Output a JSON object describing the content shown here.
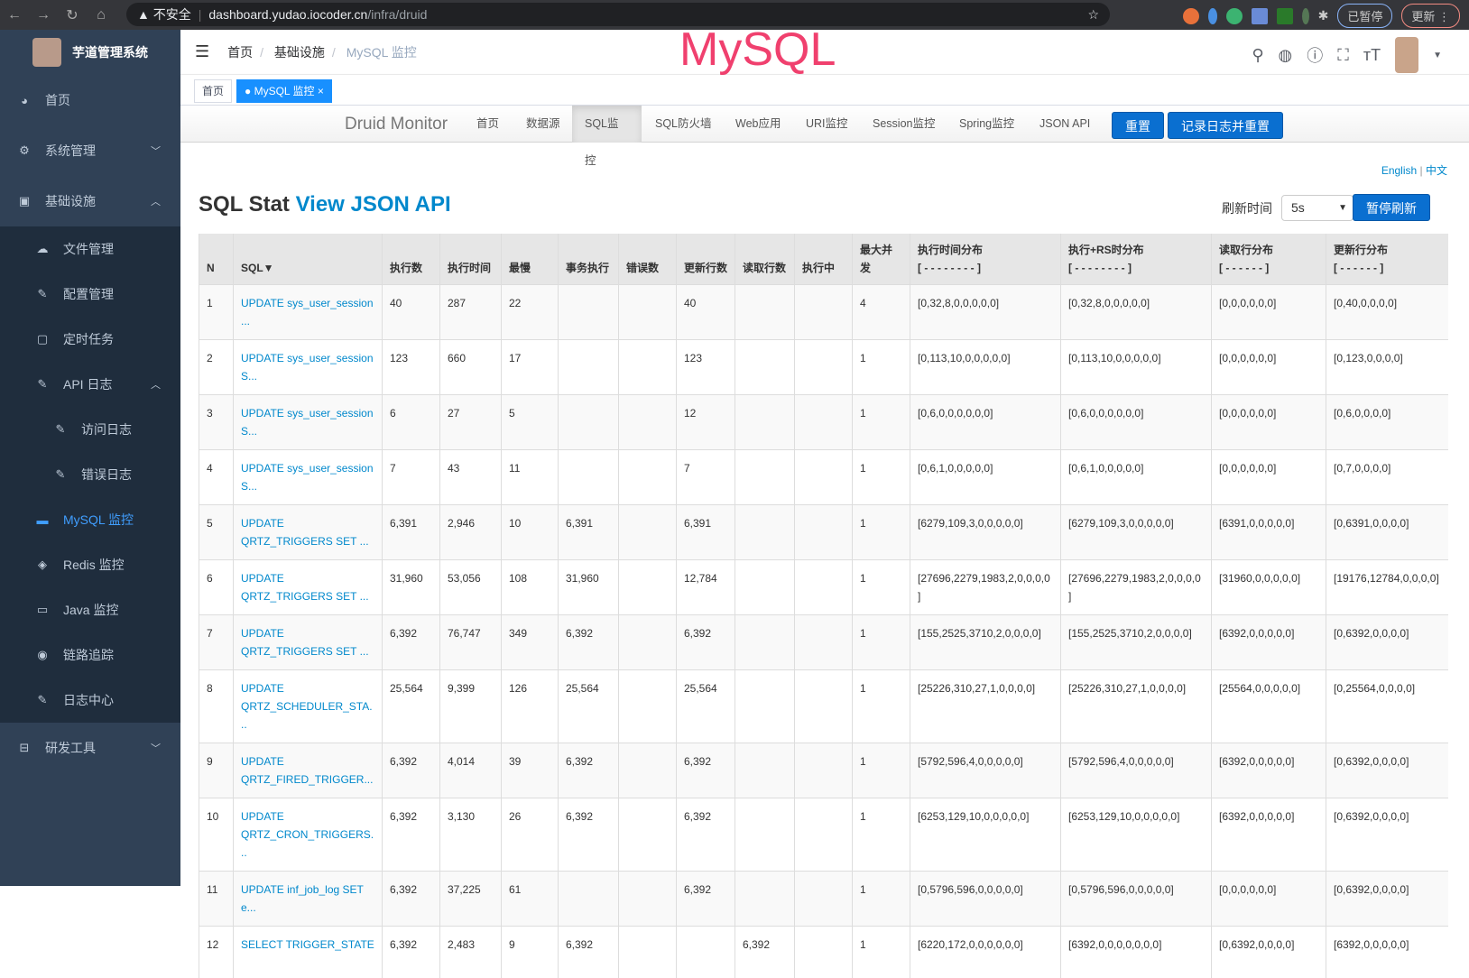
{
  "browser": {
    "security": "不安全",
    "url_host": "dashboard.yudao.iocoder.cn",
    "url_path": "/infra/druid",
    "paused": "已暂停",
    "update": "更新"
  },
  "sidebar": {
    "title": "芋道管理系统",
    "items": [
      {
        "label": "首页",
        "icon": "dashboard-icon"
      },
      {
        "label": "系统管理",
        "icon": "gear-icon"
      },
      {
        "label": "基础设施",
        "icon": "monitor-icon"
      },
      {
        "label": "文件管理",
        "icon": "upload-icon"
      },
      {
        "label": "配置管理",
        "icon": "edit-icon"
      },
      {
        "label": "定时任务",
        "icon": "job-icon"
      },
      {
        "label": "API 日志",
        "icon": "log-icon"
      },
      {
        "label": "访问日志",
        "icon": "log-icon"
      },
      {
        "label": "错误日志",
        "icon": "log-icon"
      },
      {
        "label": "MySQL 监控",
        "icon": "database-icon"
      },
      {
        "label": "Redis 监控",
        "icon": "redis-icon"
      },
      {
        "label": "Java 监控",
        "icon": "server-icon"
      },
      {
        "label": "链路追踪",
        "icon": "eye-icon"
      },
      {
        "label": "日志中心",
        "icon": "log-icon"
      },
      {
        "label": "研发工具",
        "icon": "toolbox-icon"
      }
    ]
  },
  "header": {
    "breadcrumb": [
      "首页",
      "基础设施",
      "MySQL 监控"
    ],
    "watermark": "MySQL"
  },
  "tags": [
    {
      "label": "首页"
    },
    {
      "label": "MySQL 监控"
    }
  ],
  "druid": {
    "brand": "Druid Monitor",
    "nav": [
      "首页",
      "数据源",
      "SQL监控",
      "SQL防火墙",
      "Web应用",
      "URI监控",
      "Session监控",
      "Spring监控",
      "JSON API"
    ],
    "reset": "重置",
    "log_reset": "记录日志并重置",
    "lang_en": "English",
    "lang_sep": "|",
    "lang_zh": "中文",
    "title": "SQL Stat",
    "title_link": "View JSON API",
    "refresh_label": "刷新时间",
    "refresh_value": "5s",
    "pause": "暂停刷新"
  },
  "table": {
    "headers": [
      "N",
      "SQL▼",
      "执行数",
      "执行时间",
      "最慢",
      "事务执行",
      "错误数",
      "更新行数",
      "读取行数",
      "执行中",
      "最大并发",
      "执行时间分布\n[ - - - - - - - - ]",
      "执行+RS时分布\n[ - - - - - - - - ]",
      "读取行分布\n[ - - - - - - ]",
      "更新行分布\n[ - - - - - - ]"
    ],
    "rows": [
      [
        "1",
        "UPDATE sys_user_session ...",
        "40",
        "287",
        "22",
        "",
        "",
        "40",
        "",
        "",
        "4",
        "[0,32,8,0,0,0,0,0]",
        "[0,32,8,0,0,0,0,0]",
        "[0,0,0,0,0,0]",
        "[0,40,0,0,0,0]"
      ],
      [
        "2",
        "UPDATE sys_user_session S...",
        "123",
        "660",
        "17",
        "",
        "",
        "123",
        "",
        "",
        "1",
        "[0,113,10,0,0,0,0,0]",
        "[0,113,10,0,0,0,0,0]",
        "[0,0,0,0,0,0]",
        "[0,123,0,0,0,0]"
      ],
      [
        "3",
        "UPDATE sys_user_session S...",
        "6",
        "27",
        "5",
        "",
        "",
        "12",
        "",
        "",
        "1",
        "[0,6,0,0,0,0,0,0]",
        "[0,6,0,0,0,0,0,0]",
        "[0,0,0,0,0,0]",
        "[0,6,0,0,0,0]"
      ],
      [
        "4",
        "UPDATE sys_user_session S...",
        "7",
        "43",
        "11",
        "",
        "",
        "7",
        "",
        "",
        "1",
        "[0,6,1,0,0,0,0,0]",
        "[0,6,1,0,0,0,0,0]",
        "[0,0,0,0,0,0]",
        "[0,7,0,0,0,0]"
      ],
      [
        "5",
        "UPDATE QRTZ_TRIGGERS SET ...",
        "6,391",
        "2,946",
        "10",
        "6,391",
        "",
        "6,391",
        "",
        "",
        "1",
        "[6279,109,3,0,0,0,0,0]",
        "[6279,109,3,0,0,0,0,0]",
        "[6391,0,0,0,0,0]",
        "[0,6391,0,0,0,0]"
      ],
      [
        "6",
        "UPDATE QRTZ_TRIGGERS SET ...",
        "31,960",
        "53,056",
        "108",
        "31,960",
        "",
        "12,784",
        "",
        "",
        "1",
        "[27696,2279,1983,2,0,0,0,0]",
        "[27696,2279,1983,2,0,0,0,0]",
        "[31960,0,0,0,0,0]",
        "[19176,12784,0,0,0,0]"
      ],
      [
        "7",
        "UPDATE QRTZ_TRIGGERS SET ...",
        "6,392",
        "76,747",
        "349",
        "6,392",
        "",
        "6,392",
        "",
        "",
        "1",
        "[155,2525,3710,2,0,0,0,0]",
        "[155,2525,3710,2,0,0,0,0]",
        "[6392,0,0,0,0,0]",
        "[0,6392,0,0,0,0]"
      ],
      [
        "8",
        "UPDATE QRTZ_SCHEDULER_STA...",
        "25,564",
        "9,399",
        "126",
        "25,564",
        "",
        "25,564",
        "",
        "",
        "1",
        "[25226,310,27,1,0,0,0,0]",
        "[25226,310,27,1,0,0,0,0]",
        "[25564,0,0,0,0,0]",
        "[0,25564,0,0,0,0]"
      ],
      [
        "9",
        "UPDATE QRTZ_FIRED_TRIGGER...",
        "6,392",
        "4,014",
        "39",
        "6,392",
        "",
        "6,392",
        "",
        "",
        "1",
        "[5792,596,4,0,0,0,0,0]",
        "[5792,596,4,0,0,0,0,0]",
        "[6392,0,0,0,0,0]",
        "[0,6392,0,0,0,0]"
      ],
      [
        "10",
        "UPDATE QRTZ_CRON_TRIGGERS...",
        "6,392",
        "3,130",
        "26",
        "6,392",
        "",
        "6,392",
        "",
        "",
        "1",
        "[6253,129,10,0,0,0,0,0]",
        "[6253,129,10,0,0,0,0,0]",
        "[6392,0,0,0,0,0]",
        "[0,6392,0,0,0,0]"
      ],
      [
        "11",
        "UPDATE inf_job_log SET e...",
        "6,392",
        "37,225",
        "61",
        "",
        "",
        "6,392",
        "",
        "",
        "1",
        "[0,5796,596,0,0,0,0,0]",
        "[0,5796,596,0,0,0,0,0]",
        "[0,0,0,0,0,0]",
        "[0,6392,0,0,0,0]"
      ],
      [
        "12",
        "SELECT TRIGGER_STATE",
        "6,392",
        "2,483",
        "9",
        "6,392",
        "",
        "",
        "6,392",
        "",
        "1",
        "[6220,172,0,0,0,0,0,0]",
        "[6392,0,0,0,0,0,0,0]",
        "[0,6392,0,0,0,0]",
        "[6392,0,0,0,0,0]"
      ]
    ]
  }
}
